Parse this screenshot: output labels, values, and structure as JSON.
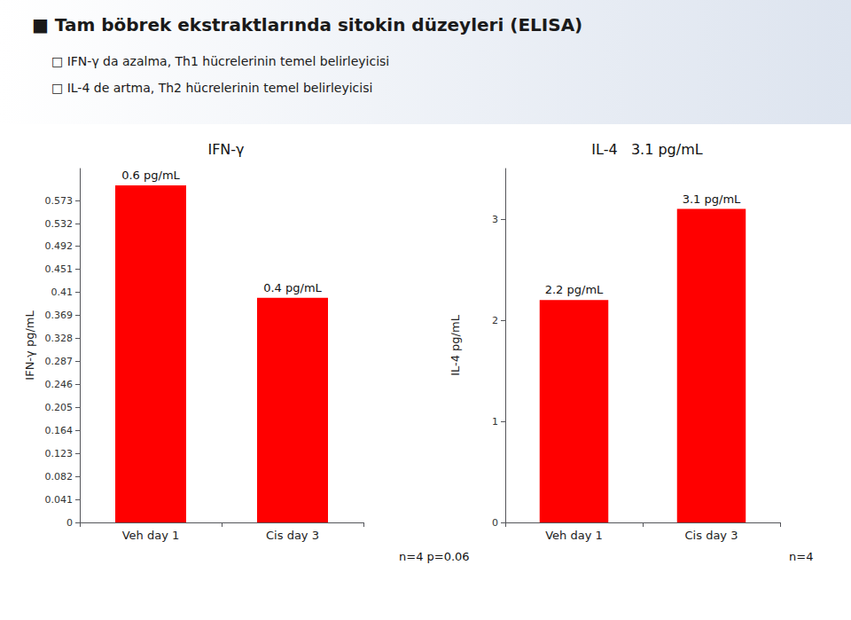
{
  "title": "■ Tam böbrek ekstraktlarında sitokin düzeyleri (ELISA)",
  "subtitle": [
    "□ IFN-γ da azalma, Th1 hücrelerinin temel belirleyicisi",
    "□ IL-4 de artma, Th2 hücrelerinin temel belirleyicisi"
  ],
  "chart_data": [
    {
      "type": "bar",
      "title": "IFN-γ",
      "ylabel": "IFN-γ pg/mL",
      "categories": [
        "Veh day 1",
        "Cis day 3"
      ],
      "values": [
        0.6,
        0.4
      ],
      "value_labels": [
        "0.6 pg/mL",
        "0.4 pg/mL"
      ],
      "data_labels": true,
      "color": "#ff0000",
      "ylim": [
        0,
        0.63
      ],
      "yticks": [
        0,
        0.041,
        0.082,
        0.123,
        0.164,
        0.205,
        0.246,
        0.287,
        0.328,
        0.369,
        0.41,
        0.451,
        0.492,
        0.532,
        0.573
      ],
      "grid": false,
      "annotations": [
        "n=4 p=0.06"
      ]
    },
    {
      "type": "bar",
      "title": "IL-4   3.1 pg/mL",
      "ylabel": "IL-4 pg/mL",
      "categories": [
        "Veh day 1",
        "Cis day 3"
      ],
      "values": [
        2.2,
        3.1
      ],
      "value_labels": [
        "2.2 pg/mL",
        "3.1 pg/mL"
      ],
      "data_labels": true,
      "color": "#ff0000",
      "ylim": [
        0,
        3.5
      ],
      "yticks": [
        0,
        1,
        2,
        3
      ],
      "grid": false,
      "annotations": [
        "n=4"
      ]
    }
  ]
}
